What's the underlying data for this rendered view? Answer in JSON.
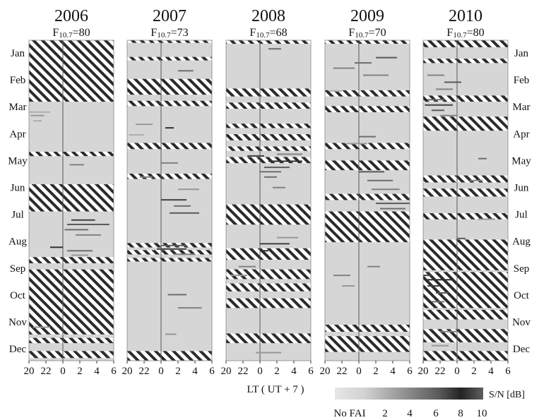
{
  "chart_data": {
    "type": "heatmap",
    "xlabel": "LT ( UT + 7 )",
    "x_ticks": [
      "20",
      "22",
      "0",
      "2",
      "4",
      "6"
    ],
    "x_tick_hours": [
      20,
      22,
      24,
      26,
      28,
      30
    ],
    "x_range_hours": [
      20,
      30
    ],
    "months": [
      "Jan",
      "Feb",
      "Mar",
      "Apr",
      "May",
      "Jun",
      "Jul",
      "Aug",
      "Sep",
      "Oct",
      "Nov",
      "Dec"
    ],
    "y_range_days": [
      1,
      365
    ],
    "colorbar": {
      "label": "S/N [dB]",
      "no_data_label": "No FAI",
      "ticks": [
        "2",
        "4",
        "6",
        "8",
        "10"
      ],
      "range": [
        0,
        10
      ],
      "colors": [
        "#e6e6e6",
        "#bdbdbd",
        "#8c8c8c",
        "#5a5a5a",
        "#2e2e2e",
        "#555555"
      ]
    },
    "panels": [
      {
        "year": "2006",
        "f107_label": "F10.7=80",
        "f107_prefix": "F",
        "f107_sub": "10.7",
        "f107_value": "=80",
        "no_data_days": [
          [
            1,
            70
          ],
          [
            128,
            132
          ],
          [
            165,
            195
          ],
          [
            248,
            254
          ],
          [
            262,
            335
          ],
          [
            340,
            345
          ],
          [
            355,
            362
          ]
        ],
        "events": [
          {
            "day": 82,
            "start": 20.0,
            "end": 22.5,
            "snr": 3
          },
          {
            "day": 86,
            "start": 20.2,
            "end": 21.8,
            "snr": 4
          },
          {
            "day": 92,
            "start": 20.5,
            "end": 21.5,
            "snr": 3
          },
          {
            "day": 142,
            "start": 24.8,
            "end": 26.5,
            "snr": 5
          },
          {
            "day": 205,
            "start": 25.0,
            "end": 27.8,
            "snr": 8
          },
          {
            "day": 210,
            "start": 24.5,
            "end": 29.5,
            "snr": 7
          },
          {
            "day": 216,
            "start": 24.2,
            "end": 27.0,
            "snr": 6
          },
          {
            "day": 222,
            "start": 25.5,
            "end": 28.5,
            "snr": 5
          },
          {
            "day": 236,
            "start": 22.5,
            "end": 24.0,
            "snr": 9
          },
          {
            "day": 240,
            "start": 24.5,
            "end": 27.5,
            "snr": 6
          },
          {
            "day": 245,
            "start": 25.0,
            "end": 27.0,
            "snr": 4
          },
          {
            "day": 327,
            "start": 20.5,
            "end": 22.5,
            "snr": 4
          }
        ]
      },
      {
        "year": "2007",
        "f107_label": "F10.7=73",
        "f107_prefix": "F",
        "f107_sub": "10.7",
        "f107_value": "=73",
        "no_data_days": [
          [
            1,
            3
          ],
          [
            20,
            23
          ],
          [
            45,
            62
          ],
          [
            70,
            75
          ],
          [
            118,
            124
          ],
          [
            153,
            158
          ],
          [
            232,
            236
          ],
          [
            240,
            244
          ],
          [
            249,
            252
          ],
          [
            355,
            365
          ]
        ],
        "events": [
          {
            "day": 35,
            "start": 26.0,
            "end": 27.8,
            "snr": 6
          },
          {
            "day": 96,
            "start": 21.0,
            "end": 23.0,
            "snr": 4
          },
          {
            "day": 100,
            "start": 24.5,
            "end": 25.5,
            "snr": 9
          },
          {
            "day": 108,
            "start": 20.2,
            "end": 22.0,
            "snr": 3
          },
          {
            "day": 140,
            "start": 24.0,
            "end": 26.0,
            "snr": 5
          },
          {
            "day": 156,
            "start": 21.5,
            "end": 23.0,
            "snr": 5
          },
          {
            "day": 170,
            "start": 26.0,
            "end": 28.5,
            "snr": 4
          },
          {
            "day": 182,
            "start": 24.0,
            "end": 27.0,
            "snr": 8
          },
          {
            "day": 189,
            "start": 25.5,
            "end": 27.5,
            "snr": 6
          },
          {
            "day": 197,
            "start": 25.0,
            "end": 28.5,
            "snr": 7
          },
          {
            "day": 234,
            "start": 24.0,
            "end": 27.0,
            "snr": 7
          },
          {
            "day": 238,
            "start": 23.5,
            "end": 27.0,
            "snr": 8
          },
          {
            "day": 244,
            "start": 25.5,
            "end": 28.0,
            "snr": 5
          },
          {
            "day": 290,
            "start": 24.8,
            "end": 27.0,
            "snr": 6
          },
          {
            "day": 305,
            "start": 26.0,
            "end": 28.8,
            "snr": 5
          },
          {
            "day": 335,
            "start": 24.5,
            "end": 25.8,
            "snr": 4
          }
        ]
      },
      {
        "year": "2008",
        "f107_label": "F10.7=68",
        "f107_prefix": "F",
        "f107_sub": "10.7",
        "f107_value": "=68",
        "no_data_days": [
          [
            1,
            4
          ],
          [
            56,
            64
          ],
          [
            72,
            78
          ],
          [
            96,
            100
          ],
          [
            108,
            114
          ],
          [
            122,
            126
          ],
          [
            134,
            140
          ],
          [
            188,
            210
          ],
          [
            238,
            250
          ],
          [
            262,
            272
          ],
          [
            278,
            286
          ],
          [
            295,
            305
          ],
          [
            335,
            345
          ]
        ],
        "events": [
          {
            "day": 10,
            "start": 25.0,
            "end": 26.5,
            "snr": 6
          },
          {
            "day": 130,
            "start": 26.0,
            "end": 29.0,
            "snr": 5
          },
          {
            "day": 132,
            "start": 22.5,
            "end": 24.5,
            "snr": 8
          },
          {
            "day": 138,
            "start": 25.0,
            "end": 29.0,
            "snr": 9
          },
          {
            "day": 145,
            "start": 24.5,
            "end": 27.5,
            "snr": 7
          },
          {
            "day": 150,
            "start": 24.0,
            "end": 26.5,
            "snr": 6
          },
          {
            "day": 156,
            "start": 24.5,
            "end": 26.0,
            "snr": 6
          },
          {
            "day": 168,
            "start": 25.5,
            "end": 27.0,
            "snr": 5
          },
          {
            "day": 225,
            "start": 26.0,
            "end": 28.5,
            "snr": 4
          },
          {
            "day": 232,
            "start": 24.0,
            "end": 27.5,
            "snr": 8
          },
          {
            "day": 240,
            "start": 24.0,
            "end": 25.0,
            "snr": 9
          },
          {
            "day": 258,
            "start": 21.5,
            "end": 23.5,
            "snr": 5
          },
          {
            "day": 268,
            "start": 20.5,
            "end": 22.5,
            "snr": 4
          },
          {
            "day": 356,
            "start": 23.5,
            "end": 26.5,
            "snr": 4
          }
        ]
      },
      {
        "year": "2009",
        "f107_label": "F10.7=70",
        "f107_prefix": "F",
        "f107_sub": "10.7",
        "f107_value": "=70",
        "no_data_days": [
          [
            1,
            4
          ],
          [
            58,
            64
          ],
          [
            76,
            82
          ],
          [
            118,
            124
          ],
          [
            138,
            148
          ],
          [
            176,
            182
          ],
          [
            196,
            230
          ],
          [
            325,
            332
          ],
          [
            338,
            355
          ]
        ],
        "events": [
          {
            "day": 20,
            "start": 26.0,
            "end": 28.5,
            "snr": 7
          },
          {
            "day": 26,
            "start": 23.5,
            "end": 25.5,
            "snr": 6
          },
          {
            "day": 32,
            "start": 21.0,
            "end": 23.5,
            "snr": 5
          },
          {
            "day": 40,
            "start": 24.5,
            "end": 27.5,
            "snr": 5
          },
          {
            "day": 58,
            "start": 20.5,
            "end": 22.0,
            "snr": 3
          },
          {
            "day": 110,
            "start": 24.0,
            "end": 26.0,
            "snr": 6
          },
          {
            "day": 118,
            "start": 22.5,
            "end": 25.0,
            "snr": 4
          },
          {
            "day": 150,
            "start": 24.0,
            "end": 27.0,
            "snr": 7
          },
          {
            "day": 160,
            "start": 25.0,
            "end": 28.0,
            "snr": 6
          },
          {
            "day": 170,
            "start": 25.5,
            "end": 28.8,
            "snr": 5
          },
          {
            "day": 186,
            "start": 26.0,
            "end": 30.0,
            "snr": 7
          },
          {
            "day": 192,
            "start": 26.5,
            "end": 29.5,
            "snr": 6
          },
          {
            "day": 258,
            "start": 25.0,
            "end": 26.5,
            "snr": 5
          },
          {
            "day": 268,
            "start": 21.0,
            "end": 23.0,
            "snr": 5
          },
          {
            "day": 280,
            "start": 22.0,
            "end": 23.5,
            "snr": 4
          }
        ]
      },
      {
        "year": "2010",
        "f107_label": "F10.7=80",
        "f107_prefix": "F",
        "f107_sub": "10.7",
        "f107_value": "=80",
        "no_data_days": [
          [
            1,
            8
          ],
          [
            22,
            26
          ],
          [
            64,
            70
          ],
          [
            88,
            103
          ],
          [
            155,
            162
          ],
          [
            170,
            178
          ],
          [
            198,
            204
          ],
          [
            228,
            262
          ],
          [
            265,
            305
          ],
          [
            308,
            318
          ],
          [
            330,
            344
          ],
          [
            355,
            365
          ]
        ],
        "events": [
          {
            "day": 40,
            "start": 20.5,
            "end": 22.5,
            "snr": 5
          },
          {
            "day": 48,
            "start": 22.5,
            "end": 24.5,
            "snr": 7
          },
          {
            "day": 56,
            "start": 21.5,
            "end": 23.5,
            "snr": 5
          },
          {
            "day": 68,
            "start": 20.5,
            "end": 22.5,
            "snr": 6
          },
          {
            "day": 74,
            "start": 20.2,
            "end": 23.5,
            "snr": 8
          },
          {
            "day": 80,
            "start": 21.0,
            "end": 22.5,
            "snr": 7
          },
          {
            "day": 86,
            "start": 22.0,
            "end": 24.0,
            "snr": 5
          },
          {
            "day": 135,
            "start": 26.5,
            "end": 27.5,
            "snr": 6
          },
          {
            "day": 160,
            "start": 25.5,
            "end": 27.0,
            "snr": 5
          },
          {
            "day": 204,
            "start": 26.5,
            "end": 28.5,
            "snr": 4
          },
          {
            "day": 226,
            "start": 24.0,
            "end": 25.0,
            "snr": 7
          },
          {
            "day": 268,
            "start": 20.0,
            "end": 21.0,
            "snr": 8
          },
          {
            "day": 273,
            "start": 20.5,
            "end": 23.5,
            "snr": 9
          },
          {
            "day": 280,
            "start": 20.5,
            "end": 22.0,
            "snr": 8
          },
          {
            "day": 288,
            "start": 21.5,
            "end": 23.0,
            "snr": 7
          },
          {
            "day": 298,
            "start": 21.0,
            "end": 22.5,
            "snr": 6
          },
          {
            "day": 332,
            "start": 22.0,
            "end": 24.0,
            "snr": 5
          },
          {
            "day": 348,
            "start": 21.0,
            "end": 23.0,
            "snr": 4
          }
        ]
      }
    ]
  }
}
